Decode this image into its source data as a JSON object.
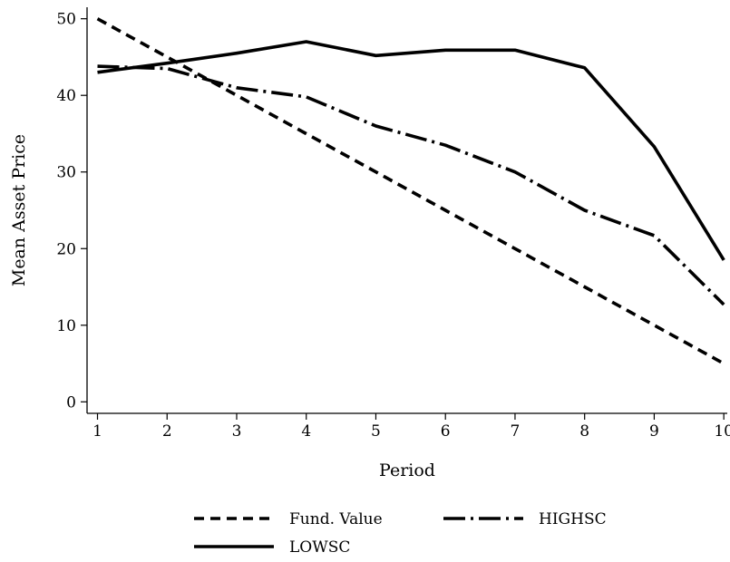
{
  "chart_data": {
    "type": "line",
    "title": "",
    "xlabel": "Period",
    "ylabel": "Mean Asset Price",
    "x": [
      1,
      2,
      3,
      4,
      5,
      6,
      7,
      8,
      9,
      10
    ],
    "xlim": [
      0.85,
      10.05
    ],
    "ylim": [
      -1.5,
      51.5
    ],
    "xticks": [
      1,
      2,
      3,
      4,
      5,
      6,
      7,
      8,
      9,
      10
    ],
    "yticks": [
      0,
      10,
      20,
      30,
      40,
      50
    ],
    "grid": false,
    "legend_position": "bottom",
    "series": [
      {
        "name": "Fund. Value",
        "style": "dashed",
        "color": "#000000",
        "values": [
          50,
          45,
          40,
          35,
          30,
          25,
          20,
          15,
          10,
          5
        ]
      },
      {
        "name": "HIGHSC",
        "style": "dash-dot",
        "color": "#000000",
        "values": [
          43.8,
          43.5,
          41,
          39.8,
          36,
          33.5,
          30,
          25,
          21.7,
          12.7
        ]
      },
      {
        "name": "LOWSC",
        "style": "solid",
        "color": "#000000",
        "values": [
          43,
          44.2,
          45.5,
          47,
          45.2,
          45.9,
          45.9,
          43.6,
          33.3,
          18.5
        ]
      }
    ]
  }
}
